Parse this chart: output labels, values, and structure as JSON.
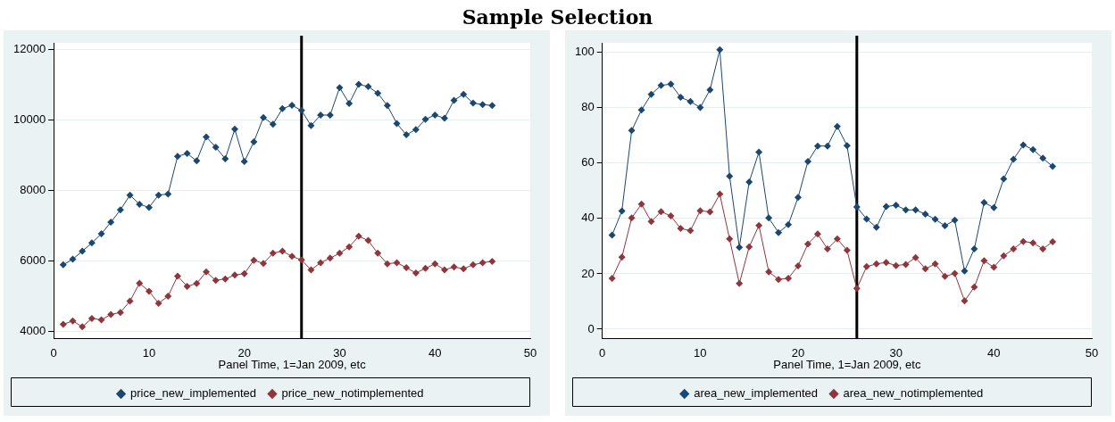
{
  "chart_data": [
    {
      "type": "line",
      "title": "Sample Selection",
      "xlabel": "Panel Time, 1=Jan 2009, etc",
      "x": [
        1,
        2,
        3,
        4,
        5,
        6,
        7,
        8,
        9,
        10,
        11,
        12,
        13,
        14,
        15,
        16,
        17,
        18,
        19,
        20,
        21,
        22,
        23,
        24,
        25,
        26,
        27,
        28,
        29,
        30,
        31,
        32,
        33,
        34,
        35,
        36,
        37,
        38,
        39,
        40,
        41,
        42,
        43,
        44,
        45,
        46
      ],
      "series": [
        {
          "name": "price_new_implemented",
          "color": "#1a476f",
          "values": [
            5900,
            6060,
            6290,
            6520,
            6780,
            7110,
            7460,
            7880,
            7620,
            7530,
            7880,
            7910,
            8980,
            9060,
            8850,
            9530,
            9240,
            8910,
            9750,
            8830,
            9390,
            10080,
            9890,
            10330,
            10430,
            10280,
            9850,
            10150,
            10150,
            10930,
            10480,
            11020,
            10960,
            10770,
            10420,
            9910,
            9590,
            9740,
            10030,
            10150,
            10060,
            10570,
            10740,
            10490,
            10450,
            10420
          ]
        },
        {
          "name": "price_new_notimplemented",
          "color": "#90353b",
          "values": [
            4210,
            4310,
            4140,
            4380,
            4340,
            4490,
            4550,
            4870,
            5380,
            5150,
            4810,
            5010,
            5580,
            5290,
            5370,
            5700,
            5460,
            5500,
            5610,
            5650,
            6030,
            5940,
            6230,
            6290,
            6140,
            6040,
            5760,
            5960,
            6090,
            6230,
            6410,
            6710,
            6590,
            6230,
            5930,
            5960,
            5820,
            5670,
            5800,
            5930,
            5760,
            5840,
            5790,
            5900,
            5960,
            6000
          ]
        }
      ],
      "xlim": [
        0,
        50
      ],
      "xticks": [
        0,
        10,
        20,
        30,
        40,
        50
      ],
      "ylim": [
        3800,
        12200
      ],
      "yticks": [
        4000,
        6000,
        8000,
        10000,
        12000
      ],
      "ref_lines": [
        {
          "axis": "x",
          "value": 26,
          "color": "#000000"
        }
      ],
      "grid": "y",
      "legend": "bottom",
      "marker": "diamond",
      "line_style": "solid"
    },
    {
      "type": "line",
      "xlabel": "Panel Time, 1=Jan 2009, etc",
      "x": [
        1,
        2,
        3,
        4,
        5,
        6,
        7,
        8,
        9,
        10,
        11,
        12,
        13,
        14,
        15,
        16,
        17,
        18,
        19,
        20,
        21,
        22,
        23,
        24,
        25,
        26,
        27,
        28,
        29,
        30,
        31,
        32,
        33,
        34,
        35,
        36,
        37,
        38,
        39,
        40,
        41,
        42,
        43,
        44,
        45,
        46
      ],
      "series": [
        {
          "name": "area_new_implemented",
          "color": "#1a476f",
          "values": [
            34.0,
            42.7,
            71.8,
            79.2,
            84.9,
            88.1,
            88.6,
            83.8,
            82.3,
            80.1,
            86.5,
            101,
            55.3,
            29.6,
            53.2,
            64.0,
            40.2,
            34.9,
            37.8,
            47.6,
            60.6,
            66.2,
            66.2,
            73.3,
            66.3,
            44.2,
            39.8,
            36.8,
            44.3,
            44.8,
            43.1,
            43.1,
            41.6,
            39.7,
            37.4,
            39.4,
            21.0,
            29.0,
            45.8,
            43.9,
            54.3,
            61.4,
            66.6,
            64.9,
            61.8,
            58.8
          ]
        },
        {
          "name": "area_new_notimplemented",
          "color": "#90353b",
          "values": [
            18.4,
            26.0,
            40.2,
            45.2,
            38.9,
            42.5,
            40.9,
            36.4,
            35.6,
            42.8,
            42.4,
            48.8,
            32.6,
            16.5,
            29.7,
            37.5,
            20.7,
            18.0,
            18.4,
            22.9,
            30.8,
            34.4,
            29.0,
            32.6,
            28.5,
            14.7,
            22.6,
            23.6,
            24.1,
            23.0,
            23.4,
            25.9,
            21.8,
            23.6,
            19.1,
            20.1,
            10.2,
            15.2,
            24.7,
            22.4,
            26.5,
            29.0,
            31.7,
            31.2,
            29.0,
            31.6
          ]
        }
      ],
      "xlim": [
        0,
        50
      ],
      "xticks": [
        0,
        10,
        20,
        30,
        40,
        50
      ],
      "ylim": [
        -3.5,
        103.5
      ],
      "yticks": [
        0,
        20,
        40,
        60,
        80,
        100
      ],
      "ref_lines": [
        {
          "axis": "x",
          "value": 26,
          "color": "#000000"
        }
      ],
      "grid": "y",
      "legend": "bottom",
      "marker": "diamond",
      "line_style": "solid"
    }
  ]
}
